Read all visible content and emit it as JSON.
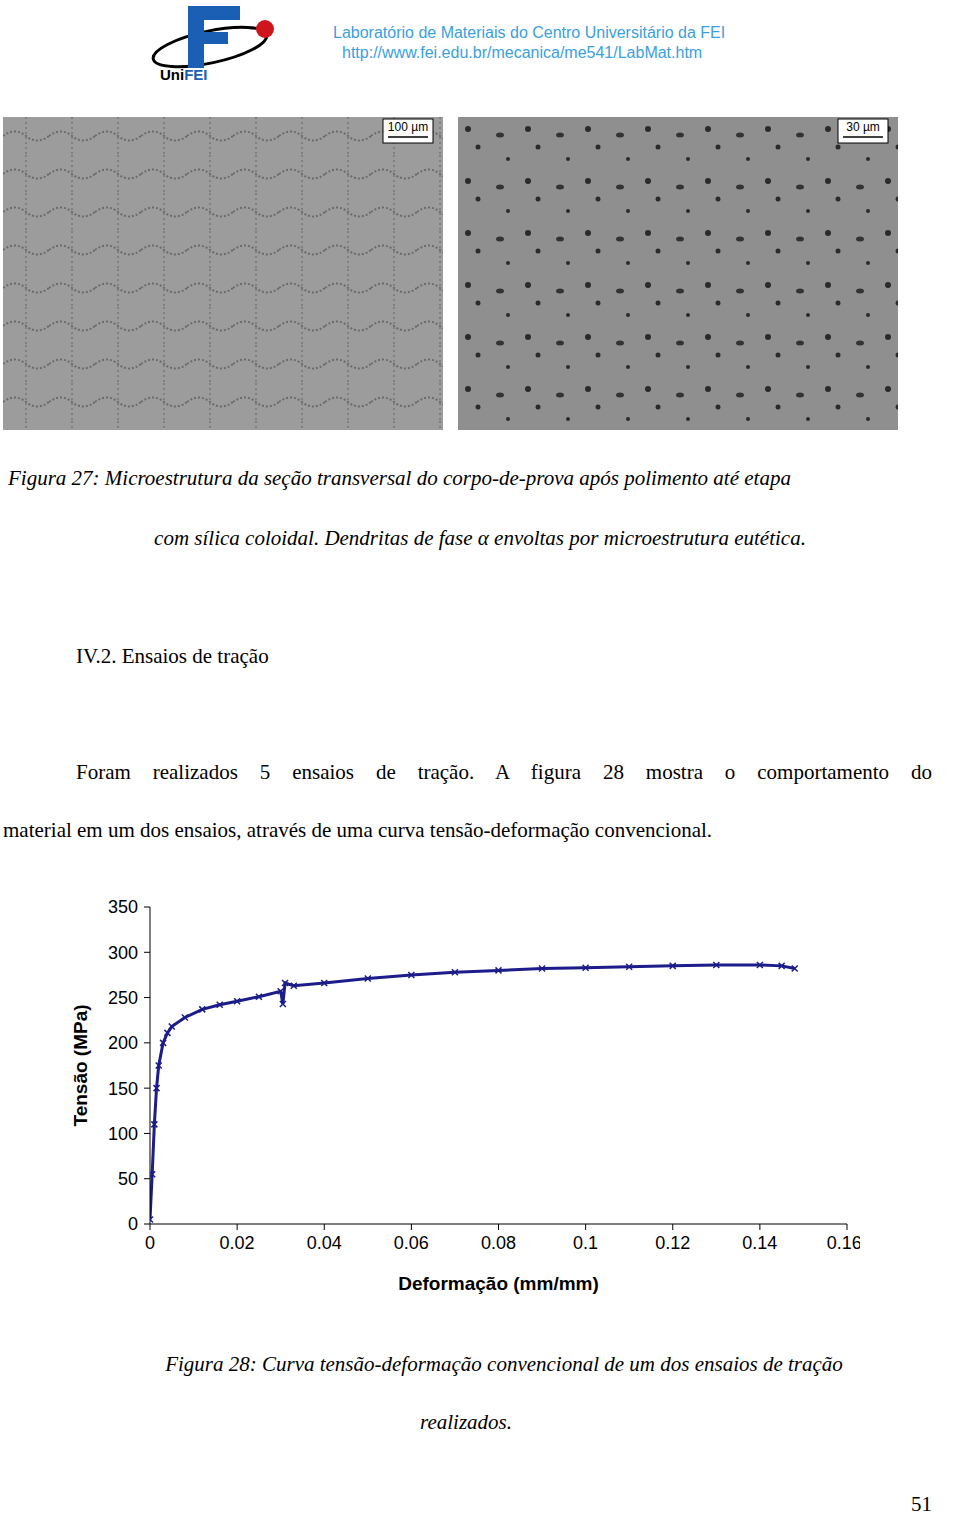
{
  "header": {
    "logo_text": [
      "Uni",
      "FEI"
    ],
    "lab": "Laboratório de Materiais do Centro Universitário da FEI",
    "url": "http://www.fei.edu.br/mecanica/me541/LabMat.htm"
  },
  "figure_27": {
    "scale_bars": [
      "100 µm",
      "30 µm"
    ],
    "caption": [
      "Figura 27: Microestrutura da seção transversal  do corpo-de-prova após polimento até etapa",
      "com sílica coloidal. Dendritas de fase α envoltas por microestrutura eutética."
    ]
  },
  "section": {
    "title": "IV.2. Ensaios de tração",
    "paragraph": [
      "Foram realizados 5 ensaios de tração. A figura 28 mostra o comportamento do",
      "material em um dos ensaios, através de uma curva tensão-deformação convencional."
    ]
  },
  "chart_data": {
    "type": "line",
    "x_label": "Deformação (mm/mm)",
    "y_label": "Tensão (MPa)",
    "x": [
      0,
      0.0005,
      0.001,
      0.0015,
      0.002,
      0.003,
      0.004,
      0.005,
      0.008,
      0.012,
      0.016,
      0.02,
      0.025,
      0.03,
      0.0305,
      0.031,
      0.033,
      0.04,
      0.05,
      0.06,
      0.07,
      0.08,
      0.09,
      0.1,
      0.11,
      0.12,
      0.13,
      0.14,
      0.145,
      0.148
    ],
    "values": [
      5,
      55,
      110,
      150,
      175,
      200,
      211,
      218,
      228,
      237,
      242,
      246,
      251,
      257,
      243,
      266,
      263,
      266,
      271,
      275,
      278,
      280,
      282,
      283,
      284,
      285,
      286,
      286,
      285,
      282
    ],
    "color": "#1c1c8a",
    "marker": "x",
    "line_style": "solid",
    "grid": false,
    "xlim": [
      0,
      0.16
    ],
    "xticks": [
      0,
      0.02,
      0.04,
      0.06,
      0.08,
      0.1,
      0.12,
      0.14,
      0.16
    ],
    "ylim": [
      0,
      350
    ],
    "yticks": [
      0,
      50,
      100,
      150,
      200,
      250,
      300,
      350
    ]
  },
  "figure_28": {
    "caption": [
      "Figura 28: Curva tensão-deformação convencional de um dos ensaios de tração",
      "realizados."
    ]
  },
  "page_number": "51"
}
